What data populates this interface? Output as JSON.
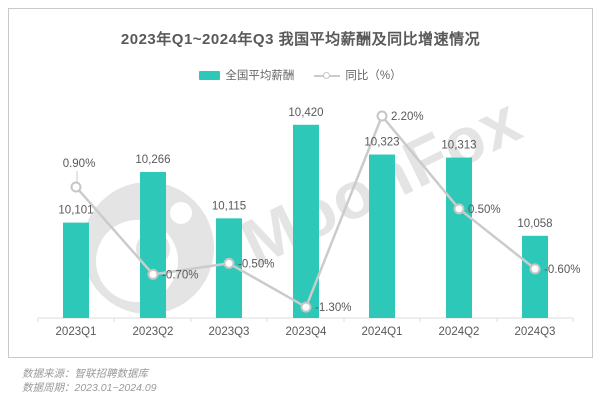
{
  "card": {
    "title": "2023年Q1~2024年Q3 我国平均薪酬及同比增速情况",
    "legend": [
      {
        "label": "全国平均薪酬",
        "type": "bar"
      },
      {
        "label": "同比（%）",
        "type": "line"
      }
    ],
    "watermark": "MoonFox"
  },
  "footer": {
    "source": "数据来源：智联招聘数据库",
    "period": "数据周期：2023.01~2024.09"
  },
  "colors": {
    "bar": "#2EC8B9",
    "line": "#CBCBCB",
    "marker_fill": "#FFFFFF",
    "marker_stroke": "#C6C6C6",
    "label_text": "#595959",
    "axis": "#DCDCDC",
    "watermark": "#E4E4E4"
  },
  "chart_data": {
    "type": "bar+line combo",
    "title": "2023年Q1~2024年Q3 我国平均薪酬及同比增速情况",
    "categories": [
      "2023Q1",
      "2023Q2",
      "2023Q3",
      "2023Q4",
      "2024Q1",
      "2024Q2",
      "2024Q3"
    ],
    "series": [
      {
        "name": "全国平均薪酬",
        "type": "bar",
        "values": [
          10101,
          10266,
          10115,
          10420,
          10323,
          10313,
          10058
        ],
        "labels": [
          "10,101",
          "10,266",
          "10,115",
          "10,420",
          "10,323",
          "10,313",
          "10,058"
        ]
      },
      {
        "name": "同比（%）",
        "type": "line",
        "values": [
          0.9,
          -0.7,
          -0.5,
          -1.3,
          2.2,
          0.5,
          -0.6
        ],
        "labels": [
          "0.90%",
          "-0.70%",
          "-0.50%",
          "-1.30%",
          "2.20%",
          "0.50%",
          "-0.60%"
        ]
      }
    ],
    "legend_position": "top",
    "grid": false,
    "value_labels_shown": true
  }
}
